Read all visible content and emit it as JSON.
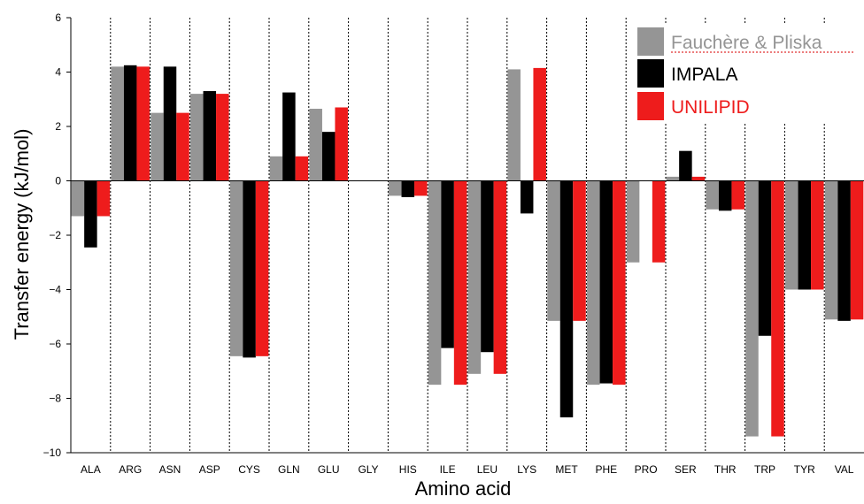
{
  "chart_data": {
    "type": "bar",
    "title": "",
    "xlabel": "Amino acid",
    "ylabel": "Transfer energy (kJ/mol)",
    "ylim": [
      -10,
      6
    ],
    "yticks": [
      "6",
      "4",
      "2",
      "0",
      "−2",
      "−4",
      "−6",
      "−8",
      "−10"
    ],
    "categories": [
      "ALA",
      "ARG",
      "ASN",
      "ASP",
      "CYS",
      "GLN",
      "GLU",
      "GLY",
      "HIS",
      "ILE",
      "LEU",
      "LYS",
      "MET",
      "PHE",
      "PRO",
      "SER",
      "THR",
      "TRP",
      "TYR",
      "VAL"
    ],
    "series": [
      {
        "name": "Fauchère & Pliska",
        "color": "#959595",
        "values": [
          -1.3,
          4.2,
          2.5,
          3.2,
          -6.45,
          0.9,
          2.65,
          0,
          -0.55,
          -7.5,
          -7.1,
          4.1,
          -5.15,
          -7.5,
          -3.0,
          0.15,
          -1.05,
          -9.4,
          -4.0,
          -5.1
        ]
      },
      {
        "name": "IMPALA",
        "color": "#000000",
        "values": [
          -2.45,
          4.25,
          4.2,
          3.3,
          -6.5,
          3.25,
          1.8,
          0,
          -0.6,
          -6.15,
          -6.3,
          -1.2,
          -8.7,
          -7.45,
          0,
          1.1,
          -1.1,
          -5.7,
          -4.0,
          -5.15
        ]
      },
      {
        "name": "UNILIPID",
        "color": "#ee1c1c",
        "values": [
          -1.3,
          4.2,
          2.5,
          3.2,
          -6.45,
          0.9,
          2.7,
          0,
          -0.55,
          -7.5,
          -7.1,
          4.15,
          -5.15,
          -7.5,
          -3.0,
          0.15,
          -1.05,
          -9.4,
          -4.0,
          -5.1
        ]
      }
    ],
    "grid": "vertical dotted separators between categories",
    "legend_position": "top-right"
  }
}
